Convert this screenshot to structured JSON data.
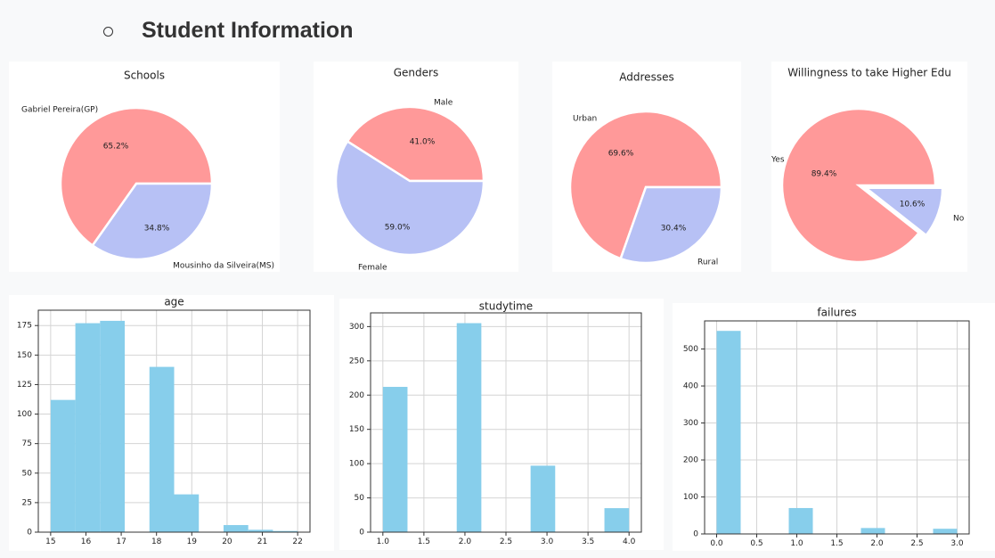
{
  "page": {
    "title": "Student Information",
    "bullet_icon": "circle-outline-icon"
  },
  "colors": {
    "pie_a": "#ff9999",
    "pie_b": "#b7c1f5",
    "hist": "#87ceeb"
  },
  "chart_data": [
    {
      "type": "pie",
      "title": "Schools",
      "labels": [
        "Gabriel Pereira(GP)",
        "Mousinho da Silveira(MS)"
      ],
      "values": [
        65.2,
        34.8
      ],
      "pct_labels": [
        "65.2%",
        "34.8%"
      ],
      "explode": [
        0,
        0
      ]
    },
    {
      "type": "pie",
      "title": "Genders",
      "labels": [
        "Male",
        "Female"
      ],
      "values": [
        41.0,
        59.0
      ],
      "pct_labels": [
        "41.0%",
        "59.0%"
      ],
      "explode": [
        0,
        0
      ]
    },
    {
      "type": "pie",
      "title": "Addresses",
      "labels": [
        "Urban",
        "Rural"
      ],
      "values": [
        69.6,
        30.4
      ],
      "pct_labels": [
        "69.6%",
        "30.4%"
      ],
      "explode": [
        0,
        0
      ]
    },
    {
      "type": "pie",
      "title": "Willingness to take Higher Edu",
      "labels": [
        "Yes",
        "No"
      ],
      "values": [
        89.4,
        10.6
      ],
      "pct_labels": [
        "89.4%",
        "10.6%"
      ],
      "explode": [
        0,
        0.1
      ]
    },
    {
      "type": "bar",
      "title": "age",
      "bins": [
        [
          15.0,
          15.7
        ],
        [
          15.7,
          16.4
        ],
        [
          16.4,
          17.1
        ],
        [
          17.8,
          18.5
        ],
        [
          18.5,
          19.2
        ],
        [
          19.9,
          20.6
        ],
        [
          20.6,
          21.3
        ],
        [
          21.3,
          22.0
        ]
      ],
      "values": [
        112,
        177,
        179,
        140,
        32,
        6,
        2,
        1
      ],
      "xlim": [
        14.65,
        22.35
      ],
      "ylim": [
        0,
        188
      ],
      "xticks": [
        15,
        16,
        17,
        18,
        19,
        20,
        21,
        22
      ],
      "yticks": [
        0,
        25,
        50,
        75,
        100,
        125,
        150,
        175
      ]
    },
    {
      "type": "bar",
      "title": "studytime",
      "bins": [
        [
          1.0,
          1.3
        ],
        [
          1.9,
          2.2
        ],
        [
          2.8,
          3.1
        ],
        [
          3.7,
          4.0
        ]
      ],
      "values": [
        212,
        305,
        97,
        35
      ],
      "xlim": [
        0.85,
        4.15
      ],
      "ylim": [
        0,
        320
      ],
      "xticks": [
        1.0,
        1.5,
        2.0,
        2.5,
        3.0,
        3.5,
        4.0
      ],
      "yticks": [
        0,
        50,
        100,
        150,
        200,
        250,
        300
      ]
    },
    {
      "type": "bar",
      "title": "failures",
      "bins": [
        [
          0.0,
          0.3
        ],
        [
          0.9,
          1.2
        ],
        [
          1.8,
          2.1
        ],
        [
          2.7,
          3.0
        ]
      ],
      "values": [
        549,
        70,
        16,
        14
      ],
      "xlim": [
        -0.15,
        3.15
      ],
      "ylim": [
        0,
        576
      ],
      "xticks": [
        0.0,
        0.5,
        1.0,
        1.5,
        2.0,
        2.5,
        3.0
      ],
      "yticks": [
        0,
        100,
        200,
        300,
        400,
        500
      ]
    }
  ]
}
